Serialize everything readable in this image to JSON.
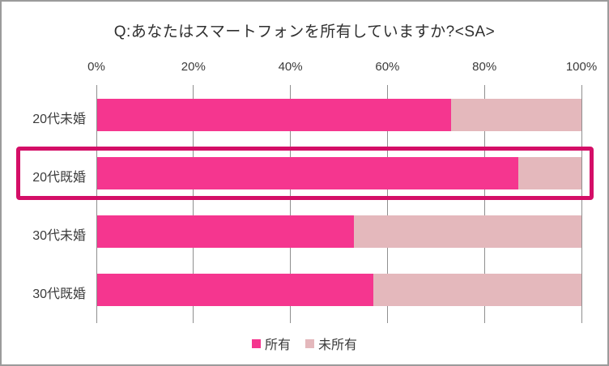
{
  "title": "Q:あなたはスマートフォンを所有していますか?<SA>",
  "chart_data": {
    "type": "bar",
    "orientation": "horizontal",
    "stacked": true,
    "title": "Q:あなたはスマートフォンを所有していますか?<SA>",
    "categories": [
      "20代未婚",
      "20代既婚",
      "30代未婚",
      "30代既婚"
    ],
    "series": [
      {
        "name": "所有",
        "color": "#f5368f",
        "values": [
          73,
          87,
          53,
          57
        ]
      },
      {
        "name": "未所有",
        "color": "#e4b8bc",
        "values": [
          27,
          13,
          47,
          43
        ]
      }
    ],
    "x_ticks": [
      "0%",
      "20%",
      "40%",
      "60%",
      "80%",
      "100%"
    ],
    "xlim": [
      0,
      100
    ],
    "grid": true,
    "gridline_color": "#8f8f8f",
    "legend_position": "bottom",
    "highlighted_category": "20代既婚",
    "highlight_color": "#d40e67"
  }
}
